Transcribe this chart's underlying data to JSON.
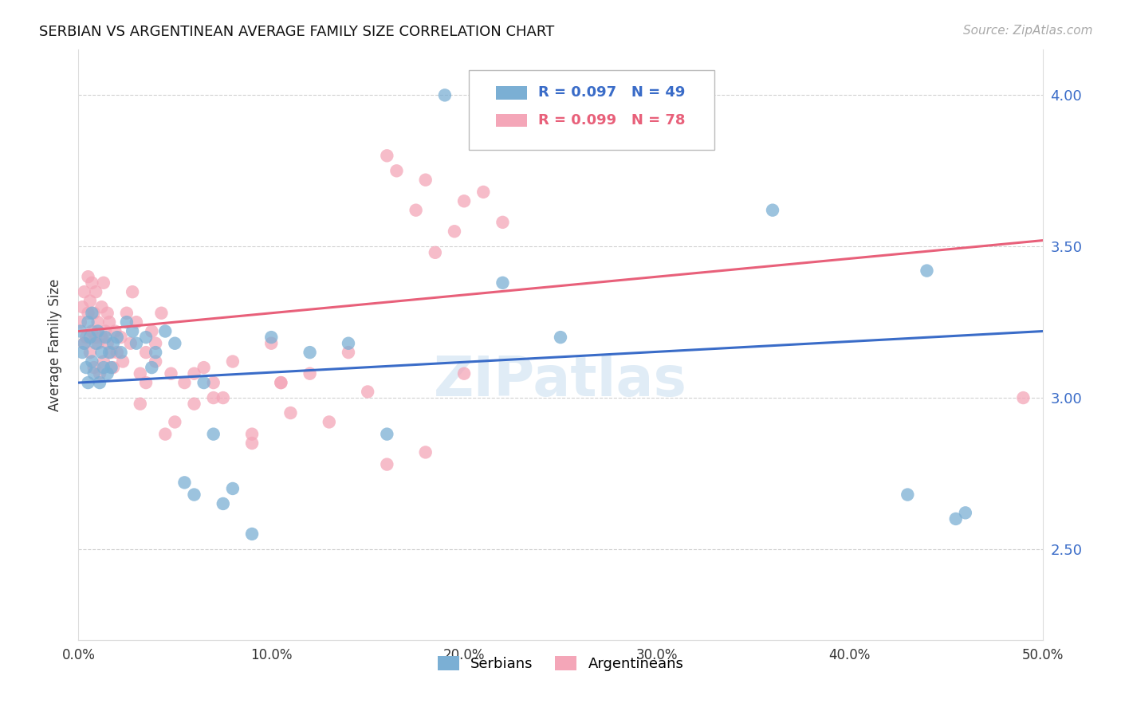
{
  "title": "SERBIAN VS ARGENTINEAN AVERAGE FAMILY SIZE CORRELATION CHART",
  "source": "Source: ZipAtlas.com",
  "ylabel": "Average Family Size",
  "xlim": [
    0.0,
    0.5
  ],
  "ylim": [
    2.2,
    4.15
  ],
  "xtick_labels": [
    "0.0%",
    "10.0%",
    "20.0%",
    "30.0%",
    "40.0%",
    "50.0%"
  ],
  "xtick_values": [
    0.0,
    0.1,
    0.2,
    0.3,
    0.4,
    0.5
  ],
  "ytick_values": [
    2.5,
    3.0,
    3.5,
    4.0
  ],
  "ytick_labels": [
    "2.50",
    "3.00",
    "3.50",
    "4.00"
  ],
  "serbian_R": 0.097,
  "serbian_N": 49,
  "argentinean_R": 0.099,
  "argentinean_N": 78,
  "serbian_color": "#7bafd4",
  "argentinean_color": "#f4a6b8",
  "serbian_line_color": "#3a6cc8",
  "argentinean_line_color": "#e8607a",
  "background_color": "#ffffff",
  "serbian_x": [
    0.001,
    0.002,
    0.003,
    0.004,
    0.005,
    0.005,
    0.006,
    0.007,
    0.007,
    0.008,
    0.009,
    0.01,
    0.011,
    0.012,
    0.013,
    0.014,
    0.015,
    0.016,
    0.017,
    0.018,
    0.02,
    0.022,
    0.025,
    0.028,
    0.03,
    0.035,
    0.038,
    0.04,
    0.045,
    0.05,
    0.055,
    0.06,
    0.065,
    0.07,
    0.075,
    0.08,
    0.09,
    0.1,
    0.12,
    0.14,
    0.16,
    0.19,
    0.22,
    0.25,
    0.36,
    0.44,
    0.455,
    0.46,
    0.43
  ],
  "serbian_y": [
    3.22,
    3.15,
    3.18,
    3.1,
    3.25,
    3.05,
    3.2,
    3.12,
    3.28,
    3.08,
    3.18,
    3.22,
    3.05,
    3.15,
    3.1,
    3.2,
    3.08,
    3.15,
    3.1,
    3.18,
    3.2,
    3.15,
    3.25,
    3.22,
    3.18,
    3.2,
    3.1,
    3.15,
    3.22,
    3.18,
    2.72,
    2.68,
    3.05,
    2.88,
    2.65,
    2.7,
    2.55,
    3.2,
    3.15,
    3.18,
    2.88,
    4.0,
    3.38,
    3.2,
    3.62,
    3.42,
    2.6,
    2.62,
    2.68
  ],
  "argentinean_x": [
    0.001,
    0.002,
    0.003,
    0.003,
    0.004,
    0.005,
    0.005,
    0.006,
    0.006,
    0.007,
    0.007,
    0.008,
    0.008,
    0.009,
    0.009,
    0.01,
    0.01,
    0.011,
    0.012,
    0.012,
    0.013,
    0.013,
    0.014,
    0.015,
    0.015,
    0.016,
    0.017,
    0.018,
    0.019,
    0.02,
    0.022,
    0.023,
    0.025,
    0.027,
    0.028,
    0.03,
    0.032,
    0.035,
    0.038,
    0.04,
    0.043,
    0.045,
    0.048,
    0.055,
    0.06,
    0.065,
    0.07,
    0.075,
    0.08,
    0.09,
    0.1,
    0.105,
    0.11,
    0.12,
    0.13,
    0.14,
    0.15,
    0.16,
    0.18,
    0.2,
    0.05,
    0.035,
    0.04,
    0.032,
    0.06,
    0.07,
    0.09,
    0.105,
    0.16,
    0.18,
    0.2,
    0.22,
    0.49,
    0.21,
    0.195,
    0.175,
    0.165,
    0.185
  ],
  "argentinean_y": [
    3.25,
    3.3,
    3.18,
    3.35,
    3.2,
    3.28,
    3.4,
    3.15,
    3.32,
    3.22,
    3.38,
    3.1,
    3.28,
    3.2,
    3.35,
    3.25,
    3.18,
    3.08,
    3.2,
    3.3,
    3.12,
    3.38,
    3.22,
    3.18,
    3.28,
    3.25,
    3.15,
    3.1,
    3.22,
    3.15,
    3.2,
    3.12,
    3.28,
    3.18,
    3.35,
    3.25,
    3.08,
    3.15,
    3.22,
    3.18,
    3.28,
    2.88,
    3.08,
    3.05,
    2.98,
    3.1,
    3.05,
    3.0,
    3.12,
    2.88,
    3.18,
    3.05,
    2.95,
    3.08,
    2.92,
    3.15,
    3.02,
    2.78,
    2.82,
    3.08,
    2.92,
    3.05,
    3.12,
    2.98,
    3.08,
    3.0,
    2.85,
    3.05,
    3.8,
    3.72,
    3.65,
    3.58,
    3.0,
    3.68,
    3.55,
    3.62,
    3.75,
    3.48
  ]
}
